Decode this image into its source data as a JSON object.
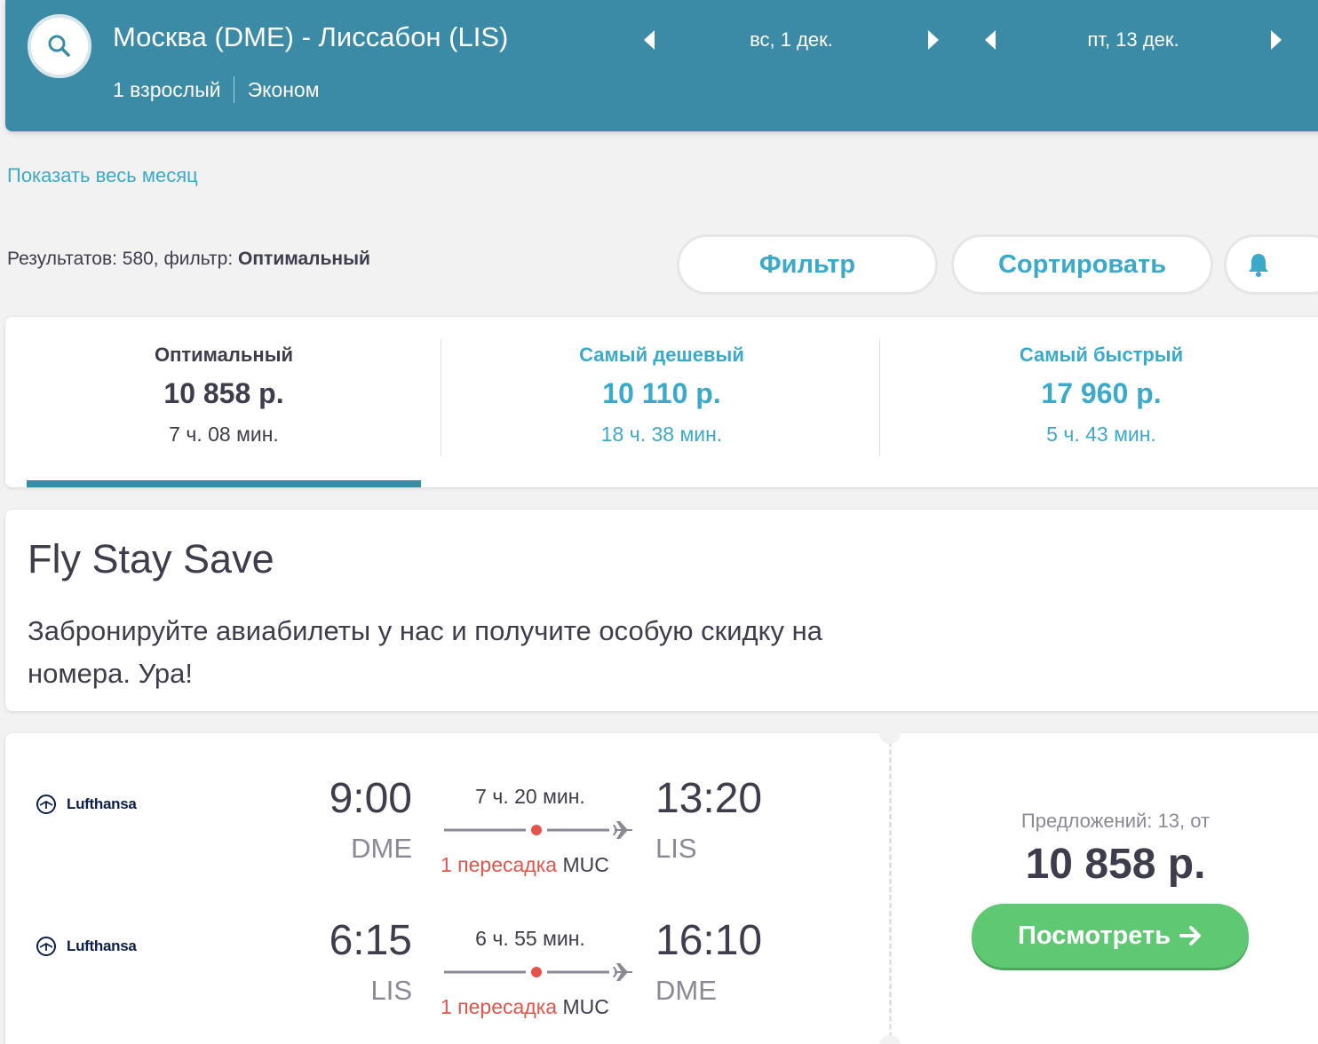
{
  "header": {
    "route": "Москва (DME) - Лиссабон (LIS)",
    "passengers": "1 взрослый",
    "cabin": "Эконом",
    "depart_date": "вс, 1 дек.",
    "return_date": "пт, 13 дек."
  },
  "show_month": "Показать весь месяц",
  "results": {
    "prefix": "Результатов: 580, фильтр: ",
    "filter_name": "Оптимальный"
  },
  "buttons": {
    "filter": "Фильтр",
    "sort": "Сортировать"
  },
  "tabs": [
    {
      "label": "Оптимальный",
      "price": "10 858 р.",
      "duration": "7 ч. 08 мин."
    },
    {
      "label": "Самый дешевый",
      "price": "10 110 р.",
      "duration": "18 ч. 38 мин."
    },
    {
      "label": "Самый быстрый",
      "price": "17 960 р.",
      "duration": "5 ч. 43 мин."
    }
  ],
  "promo": {
    "title": "Fly Stay Save",
    "text": "Забронируйте авиабилеты у нас и получите особую скидку на номера. Ура!"
  },
  "flight": {
    "legs": [
      {
        "airline": "Lufthansa",
        "dep_time": "9:00",
        "dep_code": "DME",
        "duration": "7 ч. 20 мин.",
        "stops": "1 пересадка",
        "stop_code": "MUC",
        "arr_time": "13:20",
        "arr_code": "LIS"
      },
      {
        "airline": "Lufthansa",
        "dep_time": "6:15",
        "dep_code": "LIS",
        "duration": "6 ч. 55 мин.",
        "stops": "1 пересадка",
        "stop_code": "MUC",
        "arr_time": "16:10",
        "arr_code": "DME"
      }
    ],
    "offers": "Предложений: 13, от",
    "price": "10 858 р.",
    "view_label": "Посмотреть"
  },
  "colors": {
    "header_bg": "#3b8aa6",
    "accent": "#3ba9c9",
    "stop_red": "#e5534b",
    "cta_green": "#5fc872"
  },
  "icons": [
    "search-icon",
    "chevron-left-icon",
    "chevron-right-icon",
    "bell-icon",
    "lufthansa-logo-icon",
    "plane-icon",
    "arrow-right-icon"
  ]
}
